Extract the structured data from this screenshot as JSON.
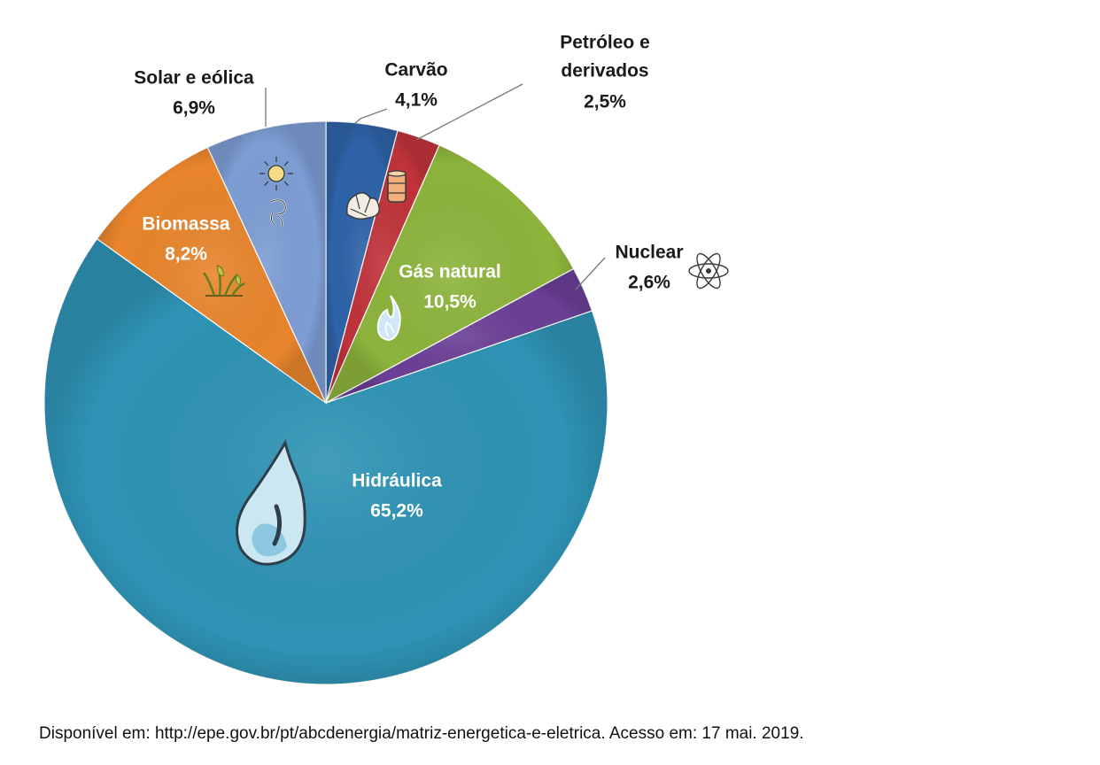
{
  "chart_data": {
    "type": "pie",
    "slices": [
      {
        "label": "Carvão",
        "value": 4.1,
        "value_label": "4,1%",
        "color": "#2e63a8",
        "icon": "coal-icon"
      },
      {
        "label": "Petróleo e derivados",
        "value": 2.5,
        "value_label": "2,5%",
        "color": "#c0333a",
        "icon": "oil-barrel-icon"
      },
      {
        "label": "Gás natural",
        "value": 10.5,
        "value_label": "10,5%",
        "color": "#8db43c",
        "icon": "flame-icon"
      },
      {
        "label": "Nuclear",
        "value": 2.6,
        "value_label": "2,6%",
        "color": "#6b3f96",
        "icon": "atom-icon"
      },
      {
        "label": "Hidráulica",
        "value": 65.2,
        "value_label": "65,2%",
        "color": "#2e93b5",
        "icon": "water-drop-icon"
      },
      {
        "label": "Biomassa",
        "value": 8.2,
        "value_label": "8,2%",
        "color": "#e8852c",
        "icon": "plant-icon"
      },
      {
        "label": "Solar e eólica",
        "value": 6.9,
        "value_label": "6,9%",
        "color": "#7d9dd4",
        "icon": "sun-wind-icon"
      }
    ],
    "start_angle": "top (12 o'clock)",
    "direction": "clockwise",
    "legend": "none"
  },
  "source": "Disponível em: http://epe.gov.br/pt/abcdenergia/matriz-energetica-e-eletrica. Acesso em: 17 mai. 2019."
}
